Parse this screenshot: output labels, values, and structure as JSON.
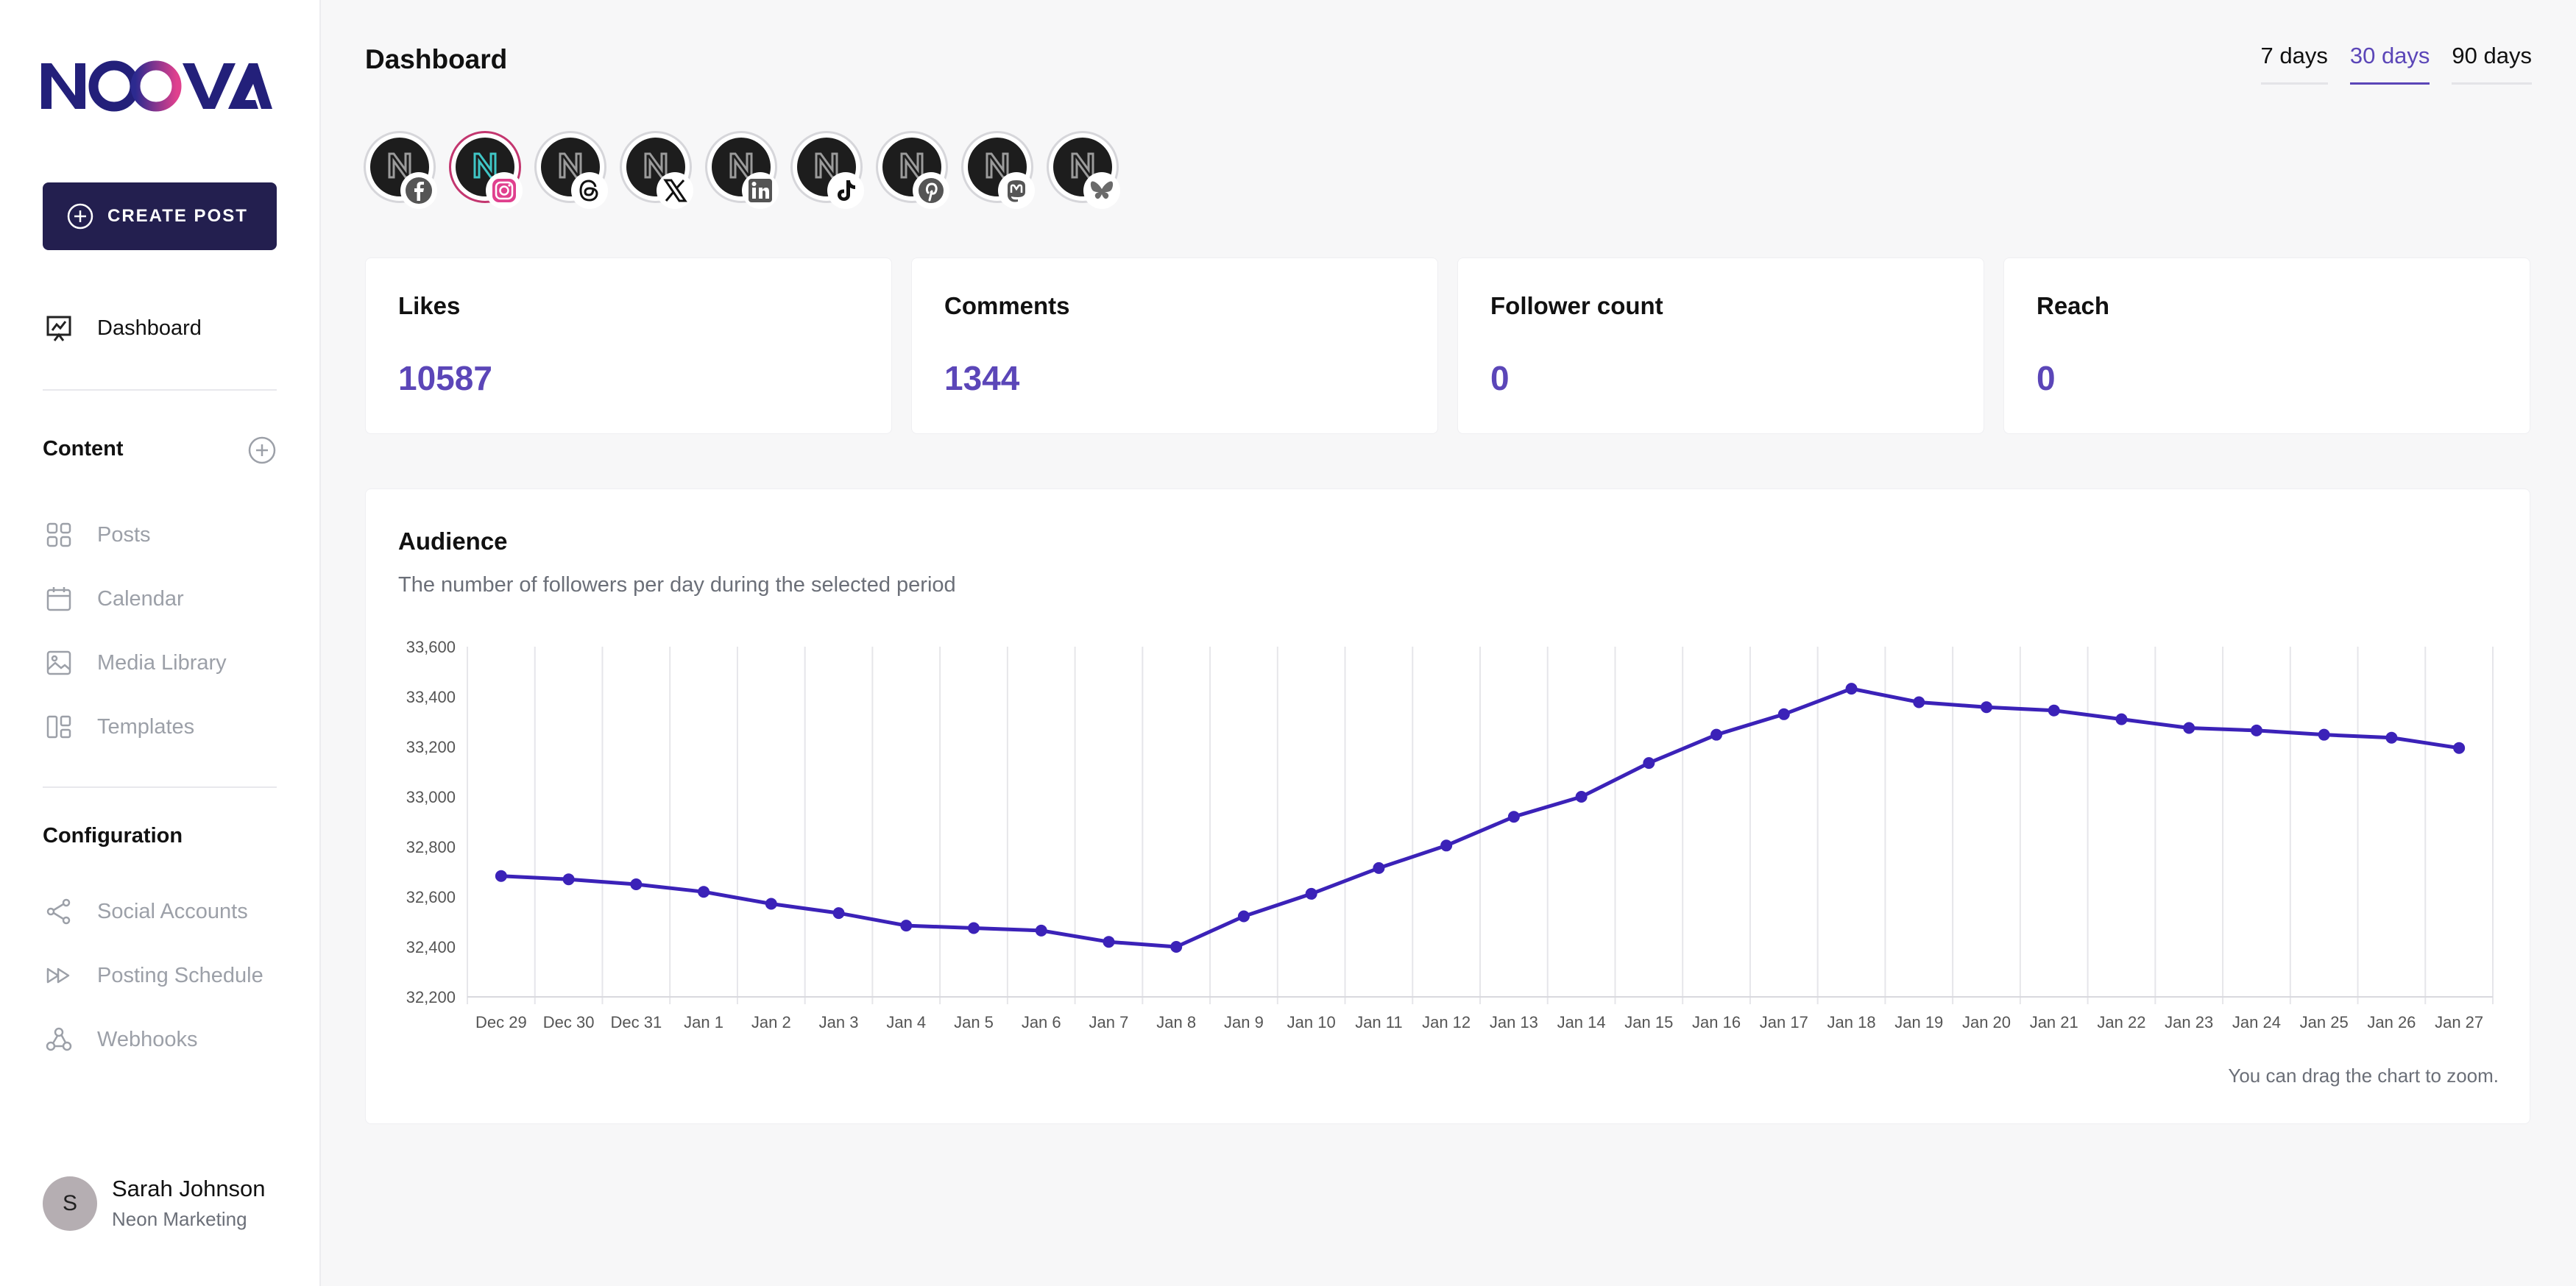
{
  "brand": {
    "name": "NOOVA",
    "accent": "#5b46b8",
    "sidebar_button": "#231f4f"
  },
  "sidebar": {
    "create_post": "CREATE POST",
    "dashboard": "Dashboard",
    "content_heading": "Content",
    "content_items": [
      "Posts",
      "Calendar",
      "Media Library",
      "Templates"
    ],
    "configuration_heading": "Configuration",
    "config_items": [
      "Social Accounts",
      "Posting Schedule",
      "Webhooks"
    ],
    "user": {
      "initial": "S",
      "name": "Sarah Johnson",
      "org": "Neon Marketing"
    }
  },
  "header": {
    "title": "Dashboard",
    "ranges": [
      "7 days",
      "30 days",
      "90 days"
    ],
    "active_range": "30 days"
  },
  "accounts": [
    {
      "platform": "facebook",
      "icon": "facebook-icon"
    },
    {
      "platform": "instagram",
      "icon": "instagram-icon",
      "selected": true
    },
    {
      "platform": "threads",
      "icon": "threads-icon"
    },
    {
      "platform": "x",
      "icon": "x-icon"
    },
    {
      "platform": "linkedin",
      "icon": "linkedin-icon"
    },
    {
      "platform": "tiktok",
      "icon": "tiktok-icon"
    },
    {
      "platform": "pinterest",
      "icon": "pinterest-icon"
    },
    {
      "platform": "mastodon",
      "icon": "mastodon-icon"
    },
    {
      "platform": "bluesky",
      "icon": "bluesky-icon"
    }
  ],
  "stats": [
    {
      "label": "Likes",
      "value": "10587"
    },
    {
      "label": "Comments",
      "value": "1344"
    },
    {
      "label": "Follower count",
      "value": "0"
    },
    {
      "label": "Reach",
      "value": "0"
    }
  ],
  "audience": {
    "title": "Audience",
    "subtitle": "The number of followers per day during the selected period",
    "drag_note": "You can drag the chart to zoom."
  },
  "chart_data": {
    "type": "line",
    "title": "Audience",
    "xlabel": "",
    "ylabel": "",
    "grid": true,
    "color": "#3b22b8",
    "ylim": [
      32200,
      33600
    ],
    "yticks": [
      32200,
      32400,
      32600,
      32800,
      33000,
      33200,
      33400,
      33600
    ],
    "ytick_labels": [
      "32,200",
      "32,400",
      "32,600",
      "32,800",
      "33,000",
      "33,200",
      "33,400",
      "33,600"
    ],
    "x": [
      "Dec 29",
      "Dec 30",
      "Dec 31",
      "Jan 1",
      "Jan 2",
      "Jan 3",
      "Jan 4",
      "Jan 5",
      "Jan 6",
      "Jan 7",
      "Jan 8",
      "Jan 9",
      "Jan 10",
      "Jan 11",
      "Jan 12",
      "Jan 13",
      "Jan 14",
      "Jan 15",
      "Jan 16",
      "Jan 17",
      "Jan 18",
      "Jan 19",
      "Jan 20",
      "Jan 21",
      "Jan 22",
      "Jan 23",
      "Jan 24",
      "Jan 25",
      "Jan 26",
      "Jan 27"
    ],
    "series": [
      {
        "values": [
          32683,
          32670,
          32650,
          32620,
          32572,
          32535,
          32485,
          32475,
          32465,
          32420,
          32400,
          32522,
          32612,
          32715,
          32805,
          32920,
          33000,
          33135,
          33248,
          33330,
          33432,
          33378,
          33358,
          33345,
          33310,
          33275,
          33265,
          33248,
          33236,
          33195
        ]
      }
    ]
  }
}
